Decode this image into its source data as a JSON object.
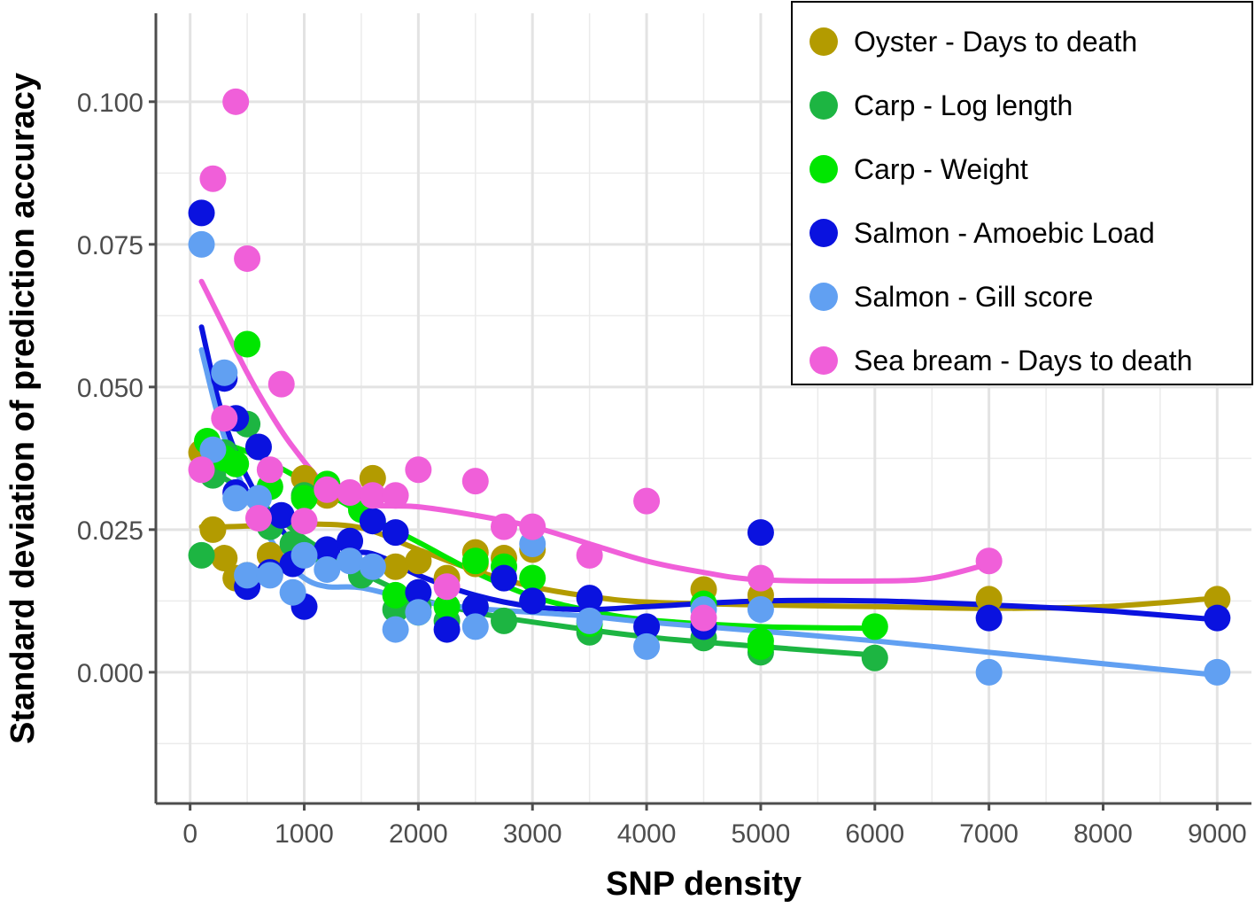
{
  "chart_data": {
    "type": "scatter",
    "xlabel": "SNP density",
    "ylabel": "Standard deviation of prediction accuracy",
    "xlim": [
      -300,
      9300
    ],
    "ylim": [
      -0.023,
      0.1155
    ],
    "x_ticks": [
      0,
      1000,
      2000,
      3000,
      4000,
      5000,
      6000,
      7000,
      8000,
      9000
    ],
    "x_tick_labels": [
      "0",
      "1000",
      "2000",
      "3000",
      "4000",
      "5000",
      "6000",
      "7000",
      "8000",
      "9000"
    ],
    "y_ticks": [
      0.0,
      0.025,
      0.05,
      0.075,
      0.1
    ],
    "y_tick_labels": [
      "0.000",
      "0.025",
      "0.050",
      "0.075",
      "0.100"
    ],
    "grid": true,
    "legend_position": "top-right",
    "series": [
      {
        "name": "Oyster - Days to death",
        "color": "#B39B00",
        "points": [
          [
            100,
            0.0385
          ],
          [
            200,
            0.025
          ],
          [
            300,
            0.02
          ],
          [
            400,
            0.0165
          ],
          [
            500,
            0.017
          ],
          [
            700,
            0.0205
          ],
          [
            1000,
            0.034
          ],
          [
            1200,
            0.031
          ],
          [
            1600,
            0.034
          ],
          [
            1800,
            0.0185
          ],
          [
            2000,
            0.0195
          ],
          [
            2250,
            0.0165
          ],
          [
            2500,
            0.021
          ],
          [
            2500,
            0.019
          ],
          [
            2750,
            0.02
          ],
          [
            3000,
            0.0215
          ],
          [
            4500,
            0.0145
          ],
          [
            5000,
            0.0135
          ],
          [
            7000,
            0.0128
          ],
          [
            9000,
            0.0128
          ]
        ],
        "smooth": [
          [
            100,
            0.0255
          ],
          [
            300,
            0.0255
          ],
          [
            600,
            0.0257
          ],
          [
            1000,
            0.026
          ],
          [
            1500,
            0.0253
          ],
          [
            2000,
            0.0215
          ],
          [
            2500,
            0.0178
          ],
          [
            3000,
            0.015
          ],
          [
            3500,
            0.0133
          ],
          [
            4000,
            0.0123
          ],
          [
            5000,
            0.0118
          ],
          [
            6000,
            0.0115
          ],
          [
            7000,
            0.0112
          ],
          [
            8000,
            0.0115
          ],
          [
            9000,
            0.013
          ]
        ]
      },
      {
        "name": "Carp - Log length",
        "color": "#1DB542",
        "points": [
          [
            100,
            0.0205
          ],
          [
            200,
            0.0345
          ],
          [
            300,
            0.0385
          ],
          [
            500,
            0.0435
          ],
          [
            700,
            0.0255
          ],
          [
            900,
            0.0225
          ],
          [
            1000,
            0.031
          ],
          [
            1200,
            0.0205
          ],
          [
            1500,
            0.017
          ],
          [
            1800,
            0.011
          ],
          [
            2000,
            0.0115
          ],
          [
            2250,
            0.009
          ],
          [
            2500,
            0.0115
          ],
          [
            2750,
            0.009
          ],
          [
            3000,
            0.0125
          ],
          [
            3500,
            0.007
          ],
          [
            4500,
            0.006
          ],
          [
            5000,
            0.0035
          ],
          [
            6000,
            0.0025
          ]
        ],
        "smooth": [
          [
            100,
            0.0365
          ],
          [
            300,
            0.034
          ],
          [
            600,
            0.03
          ],
          [
            1000,
            0.0235
          ],
          [
            1500,
            0.0175
          ],
          [
            2000,
            0.013
          ],
          [
            2500,
            0.0105
          ],
          [
            3000,
            0.0088
          ],
          [
            4000,
            0.0062
          ],
          [
            5000,
            0.0045
          ],
          [
            6000,
            0.003
          ]
        ]
      },
      {
        "name": "Carp - Weight",
        "color": "#00E600",
        "points": [
          [
            150,
            0.0405
          ],
          [
            300,
            0.0375
          ],
          [
            400,
            0.0365
          ],
          [
            500,
            0.0575
          ],
          [
            700,
            0.0325
          ],
          [
            1000,
            0.0305
          ],
          [
            1200,
            0.033
          ],
          [
            1500,
            0.0285
          ],
          [
            1800,
            0.0135
          ],
          [
            2000,
            0.0105
          ],
          [
            2250,
            0.0115
          ],
          [
            2500,
            0.0195
          ],
          [
            2750,
            0.0185
          ],
          [
            3000,
            0.0165
          ],
          [
            3500,
            0.0085
          ],
          [
            4500,
            0.012
          ],
          [
            5000,
            0.0055
          ],
          [
            5000,
            0.0045
          ],
          [
            6000,
            0.008
          ]
        ],
        "smooth": [
          [
            100,
            0.0405
          ],
          [
            300,
            0.04
          ],
          [
            600,
            0.0378
          ],
          [
            1000,
            0.0335
          ],
          [
            1500,
            0.028
          ],
          [
            2000,
            0.0228
          ],
          [
            2500,
            0.0175
          ],
          [
            3000,
            0.0133
          ],
          [
            3500,
            0.0108
          ],
          [
            4000,
            0.0092
          ],
          [
            5000,
            0.008
          ],
          [
            6000,
            0.0077
          ]
        ]
      },
      {
        "name": "Salmon - Amoebic Load",
        "color": "#0A12DF",
        "points": [
          [
            100,
            0.0805
          ],
          [
            300,
            0.0515
          ],
          [
            400,
            0.0445
          ],
          [
            400,
            0.0315
          ],
          [
            500,
            0.015
          ],
          [
            600,
            0.0395
          ],
          [
            700,
            0.0175
          ],
          [
            800,
            0.0275
          ],
          [
            900,
            0.019
          ],
          [
            1000,
            0.0115
          ],
          [
            1200,
            0.0215
          ],
          [
            1400,
            0.023
          ],
          [
            1600,
            0.0265
          ],
          [
            1800,
            0.0245
          ],
          [
            2000,
            0.014
          ],
          [
            2250,
            0.0075
          ],
          [
            2500,
            0.0115
          ],
          [
            2750,
            0.0165
          ],
          [
            3000,
            0.0125
          ],
          [
            3500,
            0.013
          ],
          [
            4000,
            0.008
          ],
          [
            4500,
            0.008
          ],
          [
            5000,
            0.0245
          ],
          [
            7000,
            0.0095
          ],
          [
            9000,
            0.0095
          ]
        ],
        "smooth": [
          [
            100,
            0.0605
          ],
          [
            250,
            0.0475
          ],
          [
            400,
            0.0385
          ],
          [
            600,
            0.0305
          ],
          [
            800,
            0.025
          ],
          [
            1000,
            0.0205
          ],
          [
            1100,
            0.0198
          ],
          [
            1300,
            0.0195
          ],
          [
            1500,
            0.021
          ],
          [
            1700,
            0.02
          ],
          [
            2000,
            0.017
          ],
          [
            2500,
            0.0135
          ],
          [
            3000,
            0.0115
          ],
          [
            3500,
            0.011
          ],
          [
            4000,
            0.0115
          ],
          [
            5000,
            0.0125
          ],
          [
            6000,
            0.0125
          ],
          [
            7000,
            0.0118
          ],
          [
            8000,
            0.0108
          ],
          [
            9000,
            0.0092
          ]
        ]
      },
      {
        "name": "Salmon - Gill score",
        "color": "#61A0F2",
        "points": [
          [
            100,
            0.075
          ],
          [
            200,
            0.039
          ],
          [
            300,
            0.0525
          ],
          [
            400,
            0.0305
          ],
          [
            500,
            0.017
          ],
          [
            600,
            0.0305
          ],
          [
            700,
            0.017
          ],
          [
            900,
            0.014
          ],
          [
            1000,
            0.0205
          ],
          [
            1200,
            0.018
          ],
          [
            1400,
            0.0195
          ],
          [
            1600,
            0.0185
          ],
          [
            1800,
            0.0075
          ],
          [
            2000,
            0.0105
          ],
          [
            2500,
            0.008
          ],
          [
            3000,
            0.0225
          ],
          [
            3500,
            0.009
          ],
          [
            4000,
            0.0045
          ],
          [
            4500,
            0.011
          ],
          [
            5000,
            0.011
          ],
          [
            7000,
            0.0
          ],
          [
            9000,
            0.0
          ]
        ],
        "smooth": [
          [
            100,
            0.0565
          ],
          [
            250,
            0.0445
          ],
          [
            400,
            0.0355
          ],
          [
            600,
            0.027
          ],
          [
            800,
            0.0205
          ],
          [
            1000,
            0.0165
          ],
          [
            1200,
            0.015
          ],
          [
            1500,
            0.0148
          ],
          [
            2000,
            0.0125
          ],
          [
            2500,
            0.0112
          ],
          [
            3000,
            0.0105
          ],
          [
            3500,
            0.0098
          ],
          [
            4000,
            0.0088
          ],
          [
            5000,
            0.0072
          ],
          [
            6000,
            0.0055
          ],
          [
            7000,
            0.0035
          ],
          [
            8000,
            0.0015
          ],
          [
            9000,
            -0.0005
          ]
        ]
      },
      {
        "name": "Sea bream - Days to death",
        "color": "#F05FD9",
        "points": [
          [
            100,
            0.0355
          ],
          [
            200,
            0.0865
          ],
          [
            300,
            0.0445
          ],
          [
            400,
            0.1
          ],
          [
            500,
            0.0725
          ],
          [
            600,
            0.027
          ],
          [
            700,
            0.0355
          ],
          [
            800,
            0.0505
          ],
          [
            1000,
            0.0265
          ],
          [
            1200,
            0.032
          ],
          [
            1400,
            0.0315
          ],
          [
            1600,
            0.031
          ],
          [
            1800,
            0.031
          ],
          [
            2000,
            0.0355
          ],
          [
            2250,
            0.015
          ],
          [
            2500,
            0.0335
          ],
          [
            2750,
            0.0255
          ],
          [
            3000,
            0.0255
          ],
          [
            3500,
            0.0205
          ],
          [
            4000,
            0.03
          ],
          [
            4500,
            0.0095
          ],
          [
            5000,
            0.0165
          ],
          [
            7000,
            0.0195
          ]
        ],
        "smooth": [
          [
            100,
            0.0685
          ],
          [
            300,
            0.0605
          ],
          [
            500,
            0.0525
          ],
          [
            700,
            0.0455
          ],
          [
            900,
            0.0395
          ],
          [
            1200,
            0.0325
          ],
          [
            1500,
            0.0295
          ],
          [
            2000,
            0.029
          ],
          [
            2500,
            0.0275
          ],
          [
            3000,
            0.0255
          ],
          [
            3500,
            0.0225
          ],
          [
            4000,
            0.0195
          ],
          [
            4500,
            0.0175
          ],
          [
            5000,
            0.0162
          ],
          [
            6000,
            0.016
          ],
          [
            6500,
            0.0165
          ],
          [
            7000,
            0.019
          ]
        ]
      }
    ]
  }
}
